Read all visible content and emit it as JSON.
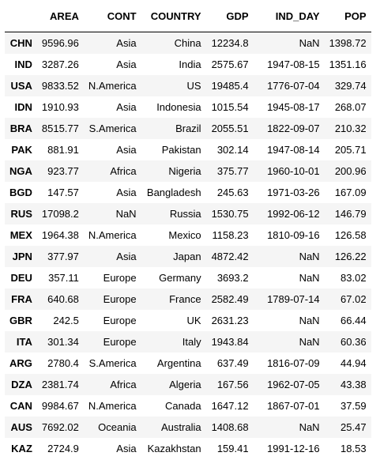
{
  "table": {
    "columns": [
      "",
      "AREA",
      "CONT",
      "COUNTRY",
      "GDP",
      "IND_DAY",
      "POP"
    ],
    "rows": [
      {
        "index": "CHN",
        "AREA": "9596.96",
        "CONT": "Asia",
        "COUNTRY": "China",
        "GDP": "12234.8",
        "IND_DAY": "NaN",
        "POP": "1398.72"
      },
      {
        "index": "IND",
        "AREA": "3287.26",
        "CONT": "Asia",
        "COUNTRY": "India",
        "GDP": "2575.67",
        "IND_DAY": "1947-08-15",
        "POP": "1351.16"
      },
      {
        "index": "USA",
        "AREA": "9833.52",
        "CONT": "N.America",
        "COUNTRY": "US",
        "GDP": "19485.4",
        "IND_DAY": "1776-07-04",
        "POP": "329.74"
      },
      {
        "index": "IDN",
        "AREA": "1910.93",
        "CONT": "Asia",
        "COUNTRY": "Indonesia",
        "GDP": "1015.54",
        "IND_DAY": "1945-08-17",
        "POP": "268.07"
      },
      {
        "index": "BRA",
        "AREA": "8515.77",
        "CONT": "S.America",
        "COUNTRY": "Brazil",
        "GDP": "2055.51",
        "IND_DAY": "1822-09-07",
        "POP": "210.32"
      },
      {
        "index": "PAK",
        "AREA": "881.91",
        "CONT": "Asia",
        "COUNTRY": "Pakistan",
        "GDP": "302.14",
        "IND_DAY": "1947-08-14",
        "POP": "205.71"
      },
      {
        "index": "NGA",
        "AREA": "923.77",
        "CONT": "Africa",
        "COUNTRY": "Nigeria",
        "GDP": "375.77",
        "IND_DAY": "1960-10-01",
        "POP": "200.96"
      },
      {
        "index": "BGD",
        "AREA": "147.57",
        "CONT": "Asia",
        "COUNTRY": "Bangladesh",
        "GDP": "245.63",
        "IND_DAY": "1971-03-26",
        "POP": "167.09"
      },
      {
        "index": "RUS",
        "AREA": "17098.2",
        "CONT": "NaN",
        "COUNTRY": "Russia",
        "GDP": "1530.75",
        "IND_DAY": "1992-06-12",
        "POP": "146.79"
      },
      {
        "index": "MEX",
        "AREA": "1964.38",
        "CONT": "N.America",
        "COUNTRY": "Mexico",
        "GDP": "1158.23",
        "IND_DAY": "1810-09-16",
        "POP": "126.58"
      },
      {
        "index": "JPN",
        "AREA": "377.97",
        "CONT": "Asia",
        "COUNTRY": "Japan",
        "GDP": "4872.42",
        "IND_DAY": "NaN",
        "POP": "126.22"
      },
      {
        "index": "DEU",
        "AREA": "357.11",
        "CONT": "Europe",
        "COUNTRY": "Germany",
        "GDP": "3693.2",
        "IND_DAY": "NaN",
        "POP": "83.02"
      },
      {
        "index": "FRA",
        "AREA": "640.68",
        "CONT": "Europe",
        "COUNTRY": "France",
        "GDP": "2582.49",
        "IND_DAY": "1789-07-14",
        "POP": "67.02"
      },
      {
        "index": "GBR",
        "AREA": "242.5",
        "CONT": "Europe",
        "COUNTRY": "UK",
        "GDP": "2631.23",
        "IND_DAY": "NaN",
        "POP": "66.44"
      },
      {
        "index": "ITA",
        "AREA": "301.34",
        "CONT": "Europe",
        "COUNTRY": "Italy",
        "GDP": "1943.84",
        "IND_DAY": "NaN",
        "POP": "60.36"
      },
      {
        "index": "ARG",
        "AREA": "2780.4",
        "CONT": "S.America",
        "COUNTRY": "Argentina",
        "GDP": "637.49",
        "IND_DAY": "1816-07-09",
        "POP": "44.94"
      },
      {
        "index": "DZA",
        "AREA": "2381.74",
        "CONT": "Africa",
        "COUNTRY": "Algeria",
        "GDP": "167.56",
        "IND_DAY": "1962-07-05",
        "POP": "43.38"
      },
      {
        "index": "CAN",
        "AREA": "9984.67",
        "CONT": "N.America",
        "COUNTRY": "Canada",
        "GDP": "1647.12",
        "IND_DAY": "1867-07-01",
        "POP": "37.59"
      },
      {
        "index": "AUS",
        "AREA": "7692.02",
        "CONT": "Oceania",
        "COUNTRY": "Australia",
        "GDP": "1408.68",
        "IND_DAY": "NaN",
        "POP": "25.47"
      },
      {
        "index": "KAZ",
        "AREA": "2724.9",
        "CONT": "Asia",
        "COUNTRY": "Kazakhstan",
        "GDP": "159.41",
        "IND_DAY": "1991-12-16",
        "POP": "18.53"
      }
    ]
  }
}
